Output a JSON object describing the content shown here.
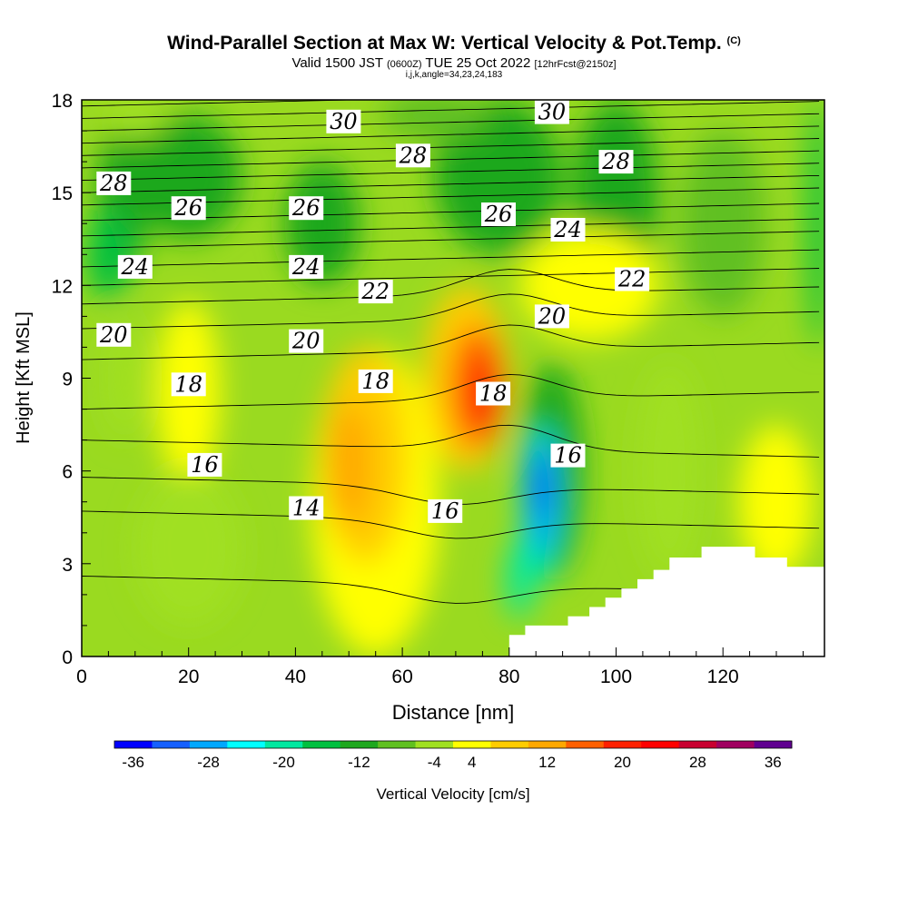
{
  "header": {
    "title": "Wind-Parallel Section at Max W: Vertical Velocity & Pot.Temp.",
    "copyright": "(C)",
    "subtitle_valid": "Valid 1500 JST",
    "subtitle_z": "(0600Z)",
    "subtitle_date": "TUE 25 Oct 2022",
    "subtitle_fcst": "[12hrFcst@2150z]",
    "ijk_line": "i,j,k,angle=34,23,24,183"
  },
  "chart_data": {
    "type": "heatmap",
    "xlabel": "Distance [nm]",
    "ylabel": "Height [Kft MSL]",
    "xlim": [
      0,
      139
    ],
    "ylim": [
      0,
      18
    ],
    "x_ticks": [
      "0",
      "20",
      "40",
      "60",
      "80",
      "100",
      "120"
    ],
    "y_ticks": [
      "0",
      "3",
      "6",
      "9",
      "12",
      "15",
      "18"
    ],
    "colorbar": {
      "label": "Vertical Velocity [cm/s]",
      "tick_labels": [
        "-36",
        "-28",
        "-20",
        "-12",
        "-4",
        "4",
        "12",
        "20",
        "28",
        "36"
      ],
      "colors": [
        "#0000ff",
        "#1560ff",
        "#00a8ff",
        "#00ffff",
        "#00e8a0",
        "#00c040",
        "#1ea81e",
        "#60c020",
        "#a0e020",
        "#ffff00",
        "#ffcc00",
        "#ffa800",
        "#ff6000",
        "#ff2000",
        "#ff0000",
        "#c80030",
        "#a00060",
        "#600090"
      ],
      "bin_edges": [
        -40,
        -36,
        -32,
        -28,
        -24,
        -20,
        -16,
        -12,
        -8,
        -4,
        4,
        8,
        12,
        16,
        20,
        24,
        28,
        32,
        36,
        40
      ]
    },
    "vertical_velocity_features": [
      {
        "x": 73,
        "y": 8.5,
        "peak_cm_s": 30,
        "note": "updraft core"
      },
      {
        "x": 53,
        "y": 6.0,
        "peak_cm_s": 12
      },
      {
        "x": 85,
        "y": 5.0,
        "peak_cm_s": -36,
        "note": "downdraft core"
      },
      {
        "x": 20,
        "y": 9.0,
        "peak_cm_s": 8
      }
    ],
    "theta_contour_labels": [
      {
        "label": "30",
        "x": 49,
        "y": 17.3
      },
      {
        "label": "30",
        "x": 88,
        "y": 17.6
      },
      {
        "label": "28",
        "x": 6,
        "y": 15.3
      },
      {
        "label": "28",
        "x": 62,
        "y": 16.2
      },
      {
        "label": "28",
        "x": 100,
        "y": 16.0
      },
      {
        "label": "26",
        "x": 20,
        "y": 14.5
      },
      {
        "label": "26",
        "x": 42,
        "y": 14.5
      },
      {
        "label": "26",
        "x": 78,
        "y": 14.3
      },
      {
        "label": "24",
        "x": 10,
        "y": 12.6
      },
      {
        "label": "24",
        "x": 42,
        "y": 12.6
      },
      {
        "label": "24",
        "x": 91,
        "y": 13.8
      },
      {
        "label": "22",
        "x": 55,
        "y": 11.8
      },
      {
        "label": "22",
        "x": 103,
        "y": 12.2
      },
      {
        "label": "20",
        "x": 6,
        "y": 10.4
      },
      {
        "label": "20",
        "x": 42,
        "y": 10.2
      },
      {
        "label": "20",
        "x": 88,
        "y": 11.0
      },
      {
        "label": "18",
        "x": 20,
        "y": 8.8
      },
      {
        "label": "18",
        "x": 55,
        "y": 8.9
      },
      {
        "label": "18",
        "x": 77,
        "y": 8.5
      },
      {
        "label": "16",
        "x": 23,
        "y": 6.2
      },
      {
        "label": "16",
        "x": 68,
        "y": 4.7
      },
      {
        "label": "16",
        "x": 91,
        "y": 6.5
      },
      {
        "label": "14",
        "x": 42,
        "y": 4.8
      }
    ]
  }
}
